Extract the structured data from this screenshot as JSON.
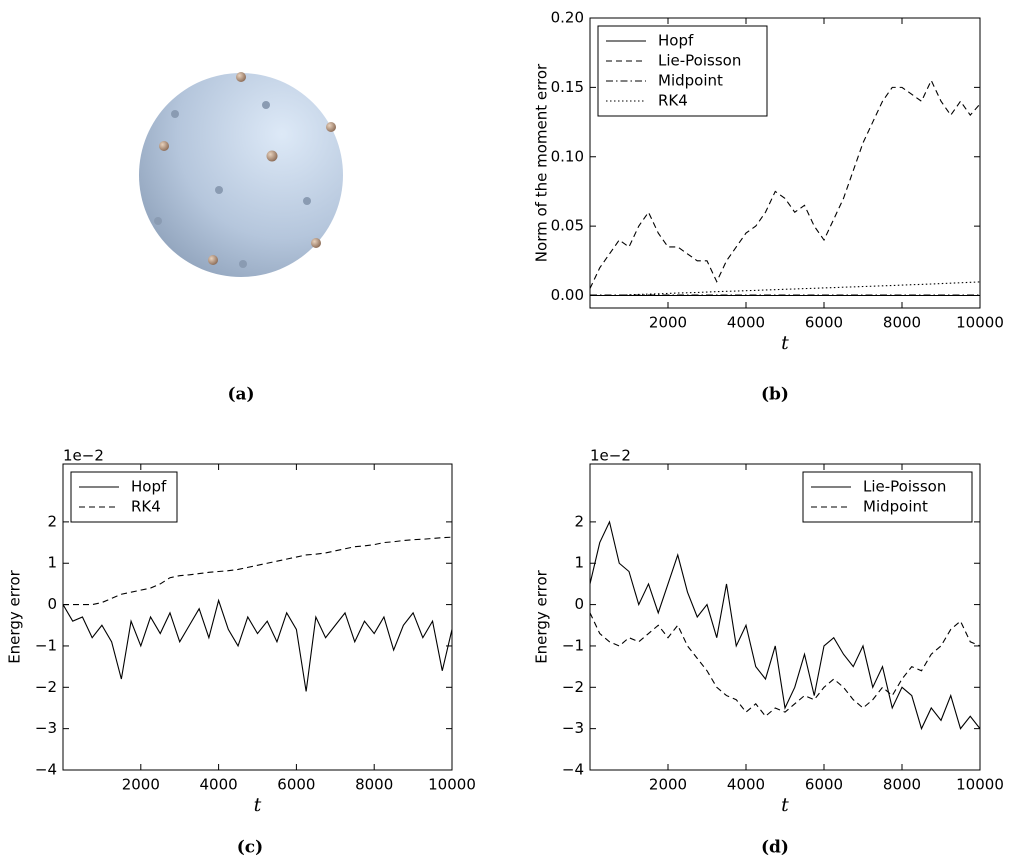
{
  "chart_data": [
    {
      "type": "image",
      "caption": "(a)"
    },
    {
      "type": "line",
      "caption": "(b)",
      "xlabel": "t",
      "ylabel": "Norm of the moment error",
      "legend": "upper left",
      "x": [
        0,
        250,
        500,
        750,
        1000,
        1250,
        1500,
        1750,
        2000,
        2250,
        2500,
        2750,
        3000,
        3250,
        3500,
        3750,
        4000,
        4250,
        4500,
        4750,
        5000,
        5250,
        5500,
        5750,
        6000,
        6250,
        6500,
        6750,
        7000,
        7250,
        7500,
        7750,
        8000,
        8250,
        8500,
        8750,
        9000,
        9250,
        9500,
        9750,
        10000
      ],
      "xlim": [
        0,
        10000
      ],
      "xticks": [
        2000,
        4000,
        6000,
        8000,
        10000
      ],
      "ylim": [
        -0.009,
        0.2
      ],
      "yticks": [
        {
          "value": 0,
          "label": "0.00"
        },
        {
          "value": 0.05,
          "label": "0.05"
        },
        {
          "value": 0.1,
          "label": "0.10"
        },
        {
          "value": 0.15,
          "label": "0.15"
        },
        {
          "value": 0.2,
          "label": "0.20"
        }
      ],
      "series": [
        {
          "name": "Hopf",
          "color": "#000000",
          "dash": "solid",
          "values": [
            0,
            0,
            0,
            0,
            0,
            0,
            0,
            0,
            0,
            0,
            0,
            0,
            0,
            0,
            0,
            0,
            0,
            0,
            0,
            0,
            0,
            0,
            0,
            0,
            0,
            0,
            0,
            0,
            0,
            0,
            0,
            0,
            0,
            0,
            0,
            0,
            0,
            0,
            0,
            0,
            0
          ]
        },
        {
          "name": "Lie-Poisson",
          "color": "#000000",
          "dash": "dashed",
          "values": [
            0.005,
            0.02,
            0.03,
            0.04,
            0.035,
            0.05,
            0.06,
            0.045,
            0.035,
            0.035,
            0.03,
            0.025,
            0.025,
            0.01,
            0.025,
            0.035,
            0.045,
            0.05,
            0.06,
            0.075,
            0.07,
            0.06,
            0.065,
            0.05,
            0.04,
            0.055,
            0.07,
            0.09,
            0.11,
            0.125,
            0.14,
            0.15,
            0.15,
            0.145,
            0.14,
            0.155,
            0.14,
            0.13,
            0.14,
            0.13,
            0.138
          ]
        },
        {
          "name": "Midpoint",
          "color": "#000000",
          "dash": "dashdot",
          "values": [
            0.0003,
            0.0003,
            0.0003,
            0.0003,
            0.0003,
            0.0003,
            0.0003,
            0.0003,
            0.0003,
            0.0003,
            0.0003,
            0.0003,
            0.0003,
            0.0003,
            0.0003,
            0.0003,
            0.0003,
            0.0003,
            0.0003,
            0.0003,
            0.0003,
            0.0003,
            0.0003,
            0.0003,
            0.0003,
            0.0003,
            0.0003,
            0.0003,
            0.0003,
            0.0003,
            0.0003,
            0.0003,
            0.0003,
            0.0003,
            0.0003,
            0.0003,
            0.0003,
            0.0003,
            0.0003,
            0.0003,
            0.0003
          ]
        },
        {
          "name": "RK4",
          "color": "#000000",
          "dash": "dotted",
          "values": [
            0,
            0,
            0,
            0,
            0.0005,
            0.0008,
            0.001,
            0.0012,
            0.0015,
            0.0018,
            0.002,
            0.0022,
            0.0025,
            0.0028,
            0.003,
            0.0032,
            0.0035,
            0.0037,
            0.004,
            0.0042,
            0.0045,
            0.0047,
            0.005,
            0.0052,
            0.0055,
            0.0057,
            0.006,
            0.0062,
            0.0065,
            0.0067,
            0.007,
            0.0072,
            0.0075,
            0.0078,
            0.008,
            0.0083,
            0.0086,
            0.0089,
            0.0092,
            0.0095,
            0.0098
          ]
        }
      ]
    },
    {
      "type": "line",
      "caption": "(c)",
      "xlabel": "t",
      "ylabel": "Energy error",
      "offset_text": "1e−2",
      "legend": "upper left",
      "x": [
        0,
        250,
        500,
        750,
        1000,
        1250,
        1500,
        1750,
        2000,
        2250,
        2500,
        2750,
        3000,
        3250,
        3500,
        3750,
        4000,
        4250,
        4500,
        4750,
        5000,
        5250,
        5500,
        5750,
        6000,
        6250,
        6500,
        6750,
        7000,
        7250,
        7500,
        7750,
        8000,
        8250,
        8500,
        8750,
        9000,
        9250,
        9500,
        9750,
        10000
      ],
      "xlim": [
        0,
        10000
      ],
      "xticks": [
        2000,
        4000,
        6000,
        8000,
        10000
      ],
      "ylim": [
        -4,
        3.4
      ],
      "yticks": [
        {
          "value": -4,
          "label": "−4"
        },
        {
          "value": -3,
          "label": "−3"
        },
        {
          "value": -2,
          "label": "−2"
        },
        {
          "value": -1,
          "label": "−1"
        },
        0,
        1,
        2
      ],
      "series": [
        {
          "name": "Hopf",
          "color": "#000000",
          "dash": "solid",
          "values": [
            0,
            -0.4,
            -0.3,
            -0.8,
            -0.5,
            -0.9,
            -1.8,
            -0.4,
            -1.0,
            -0.3,
            -0.7,
            -0.2,
            -0.9,
            -0.5,
            -0.1,
            -0.8,
            0.1,
            -0.6,
            -1.0,
            -0.3,
            -0.7,
            -0.4,
            -0.9,
            -0.2,
            -0.6,
            -2.1,
            -0.3,
            -0.8,
            -0.5,
            -0.2,
            -0.9,
            -0.4,
            -0.7,
            -0.3,
            -1.1,
            -0.5,
            -0.2,
            -0.8,
            -0.4,
            -1.6,
            -0.6
          ]
        },
        {
          "name": "RK4",
          "color": "#000000",
          "dash": "dashed",
          "values": [
            0,
            0,
            0,
            0,
            0.05,
            0.15,
            0.25,
            0.3,
            0.35,
            0.4,
            0.5,
            0.65,
            0.7,
            0.72,
            0.75,
            0.78,
            0.8,
            0.82,
            0.85,
            0.9,
            0.95,
            1.0,
            1.05,
            1.1,
            1.15,
            1.2,
            1.22,
            1.25,
            1.3,
            1.35,
            1.4,
            1.42,
            1.45,
            1.5,
            1.52,
            1.55,
            1.57,
            1.58,
            1.6,
            1.62,
            1.63
          ]
        }
      ]
    },
    {
      "type": "line",
      "caption": "(d)",
      "xlabel": "t",
      "ylabel": "Energy error",
      "offset_text": "1e−2",
      "legend": "upper right",
      "x": [
        0,
        250,
        500,
        750,
        1000,
        1250,
        1500,
        1750,
        2000,
        2250,
        2500,
        2750,
        3000,
        3250,
        3500,
        3750,
        4000,
        4250,
        4500,
        4750,
        5000,
        5250,
        5500,
        5750,
        6000,
        6250,
        6500,
        6750,
        7000,
        7250,
        7500,
        7750,
        8000,
        8250,
        8500,
        8750,
        9000,
        9250,
        9500,
        9750,
        10000
      ],
      "xlim": [
        0,
        10000
      ],
      "xticks": [
        2000,
        4000,
        6000,
        8000,
        10000
      ],
      "ylim": [
        -4,
        3.4
      ],
      "yticks": [
        {
          "value": -4,
          "label": "−4"
        },
        {
          "value": -3,
          "label": "−3"
        },
        {
          "value": -2,
          "label": "−2"
        },
        {
          "value": -1,
          "label": "−1"
        },
        0,
        1,
        2
      ],
      "series": [
        {
          "name": "Lie-Poisson",
          "color": "#000000",
          "dash": "solid",
          "values": [
            0.5,
            1.5,
            2.0,
            1.0,
            0.8,
            0,
            0.5,
            -0.2,
            0.5,
            1.2,
            0.3,
            -0.3,
            0,
            -0.8,
            0.5,
            -1.0,
            -0.5,
            -1.5,
            -1.8,
            -1.0,
            -2.5,
            -2.0,
            -1.2,
            -2.2,
            -1.0,
            -0.8,
            -1.2,
            -1.5,
            -1.0,
            -2.0,
            -1.5,
            -2.5,
            -2.0,
            -2.2,
            -3.0,
            -2.5,
            -2.8,
            -2.2,
            -3.0,
            -2.7,
            -3.0
          ]
        },
        {
          "name": "Midpoint",
          "color": "#000000",
          "dash": "dashed",
          "values": [
            -0.2,
            -0.7,
            -0.9,
            -1.0,
            -0.8,
            -0.9,
            -0.7,
            -0.5,
            -0.8,
            -0.5,
            -1.0,
            -1.3,
            -1.6,
            -2.0,
            -2.2,
            -2.3,
            -2.6,
            -2.4,
            -2.7,
            -2.5,
            -2.6,
            -2.4,
            -2.2,
            -2.3,
            -2.0,
            -1.8,
            -2.0,
            -2.3,
            -2.5,
            -2.3,
            -2.0,
            -2.2,
            -1.8,
            -1.5,
            -1.6,
            -1.2,
            -1.0,
            -0.6,
            -0.4,
            -0.9,
            -1.0
          ]
        }
      ]
    }
  ]
}
